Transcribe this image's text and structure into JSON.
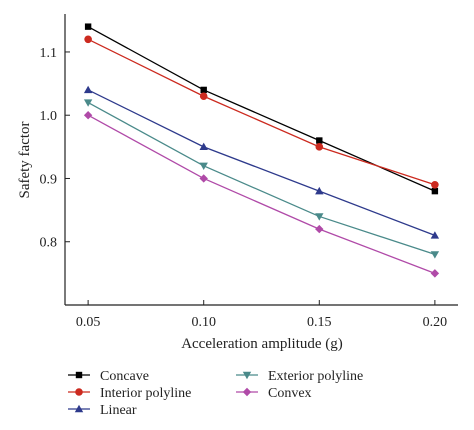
{
  "chart_data": {
    "type": "line",
    "xlabel": "Acceleration amplitude (g)",
    "ylabel": "Safety factor",
    "xlim": [
      0.04,
      0.21
    ],
    "ylim": [
      0.7,
      1.16
    ],
    "x": [
      0.05,
      0.1,
      0.15,
      0.2
    ],
    "x_tick_labels": [
      "0.05",
      "0.10",
      "0.15",
      "0.20"
    ],
    "y_ticks": [
      0.8,
      0.9,
      1.0,
      1.1
    ],
    "y_tick_labels": [
      "0.8",
      "0.9",
      "1.0",
      "1.1"
    ],
    "grid": false,
    "legend_position": "bottom",
    "series": [
      {
        "name": "Concave",
        "values": [
          1.14,
          1.04,
          0.96,
          0.88
        ],
        "color": "#000000",
        "marker": "square"
      },
      {
        "name": "Interior polyline",
        "values": [
          1.12,
          1.03,
          0.95,
          0.89
        ],
        "color": "#cc2a1f",
        "marker": "circle"
      },
      {
        "name": "Linear",
        "values": [
          1.04,
          0.95,
          0.88,
          0.81
        ],
        "color": "#2e3a8c",
        "marker": "triangle-up"
      },
      {
        "name": "Exterior polyline",
        "values": [
          1.02,
          0.92,
          0.84,
          0.78
        ],
        "color": "#4a8a8a",
        "marker": "triangle-down"
      },
      {
        "name": "Convex",
        "values": [
          1.0,
          0.9,
          0.82,
          0.75
        ],
        "color": "#b04aa8",
        "marker": "diamond"
      }
    ]
  }
}
